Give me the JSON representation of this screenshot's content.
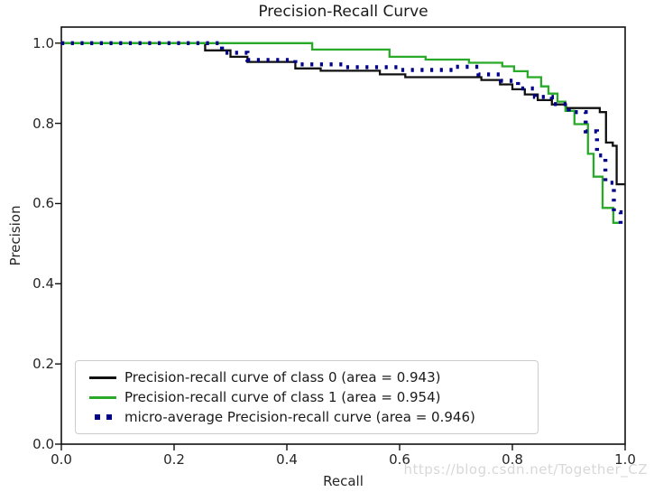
{
  "watermark": "https://blog.csdn.net/Together_CZ",
  "chart_data": {
    "type": "line",
    "title": "Precision-Recall Curve",
    "xlabel": "Recall",
    "ylabel": "Precision",
    "xlim": [
      0.0,
      1.0
    ],
    "ylim": [
      0.0,
      1.04
    ],
    "xticks": [
      0.0,
      0.2,
      0.4,
      0.6,
      0.8,
      1.0
    ],
    "yticks": [
      0.0,
      0.2,
      0.4,
      0.6,
      0.8,
      1.0
    ],
    "grid": false,
    "legend_position": "lower left",
    "axis_color": "#111111",
    "series": [
      {
        "name": "Precision-recall curve of class 0 (area = 0.943)",
        "area": 0.943,
        "color": "#111111",
        "style": "solid",
        "points": [
          [
            0.0,
            1.0
          ],
          [
            0.255,
            1.0
          ],
          [
            0.255,
            0.982
          ],
          [
            0.3,
            0.982
          ],
          [
            0.3,
            0.966
          ],
          [
            0.33,
            0.966
          ],
          [
            0.33,
            0.953
          ],
          [
            0.415,
            0.953
          ],
          [
            0.415,
            0.937
          ],
          [
            0.46,
            0.937
          ],
          [
            0.46,
            0.931
          ],
          [
            0.565,
            0.931
          ],
          [
            0.565,
            0.922
          ],
          [
            0.61,
            0.922
          ],
          [
            0.61,
            0.915
          ],
          [
            0.745,
            0.915
          ],
          [
            0.745,
            0.908
          ],
          [
            0.778,
            0.908
          ],
          [
            0.778,
            0.897
          ],
          [
            0.8,
            0.897
          ],
          [
            0.8,
            0.885
          ],
          [
            0.822,
            0.885
          ],
          [
            0.822,
            0.872
          ],
          [
            0.845,
            0.872
          ],
          [
            0.845,
            0.858
          ],
          [
            0.87,
            0.858
          ],
          [
            0.87,
            0.847
          ],
          [
            0.895,
            0.847
          ],
          [
            0.895,
            0.838
          ],
          [
            0.955,
            0.838
          ],
          [
            0.955,
            0.828
          ],
          [
            0.966,
            0.828
          ],
          [
            0.966,
            0.752
          ],
          [
            0.978,
            0.752
          ],
          [
            0.978,
            0.744
          ],
          [
            0.985,
            0.744
          ],
          [
            0.985,
            0.648
          ],
          [
            1.0,
            0.648
          ]
        ]
      },
      {
        "name": "Precision-recall curve of class 1 (area = 0.954)",
        "area": 0.954,
        "color": "#28aa28",
        "style": "solid",
        "points": [
          [
            0.0,
            1.0
          ],
          [
            0.445,
            1.0
          ],
          [
            0.445,
            0.984
          ],
          [
            0.582,
            0.984
          ],
          [
            0.582,
            0.966
          ],
          [
            0.646,
            0.966
          ],
          [
            0.646,
            0.959
          ],
          [
            0.723,
            0.959
          ],
          [
            0.723,
            0.951
          ],
          [
            0.782,
            0.951
          ],
          [
            0.782,
            0.942
          ],
          [
            0.803,
            0.942
          ],
          [
            0.803,
            0.93
          ],
          [
            0.827,
            0.93
          ],
          [
            0.827,
            0.915
          ],
          [
            0.851,
            0.915
          ],
          [
            0.851,
            0.892
          ],
          [
            0.864,
            0.892
          ],
          [
            0.864,
            0.874
          ],
          [
            0.88,
            0.874
          ],
          [
            0.88,
            0.854
          ],
          [
            0.894,
            0.854
          ],
          [
            0.894,
            0.831
          ],
          [
            0.91,
            0.831
          ],
          [
            0.91,
            0.798
          ],
          [
            0.934,
            0.798
          ],
          [
            0.934,
            0.724
          ],
          [
            0.944,
            0.724
          ],
          [
            0.944,
            0.667
          ],
          [
            0.96,
            0.667
          ],
          [
            0.96,
            0.589
          ],
          [
            0.979,
            0.589
          ],
          [
            0.979,
            0.552
          ],
          [
            0.99,
            0.552
          ]
        ]
      },
      {
        "name": "micro-average Precision-recall curve (area = 0.946)",
        "area": 0.946,
        "color": "#00008b",
        "style": "dotted",
        "points": [
          [
            0.0,
            1.0
          ],
          [
            0.285,
            1.0
          ],
          [
            0.285,
            0.976
          ],
          [
            0.33,
            0.976
          ],
          [
            0.33,
            0.958
          ],
          [
            0.415,
            0.958
          ],
          [
            0.415,
            0.947
          ],
          [
            0.5,
            0.947
          ],
          [
            0.5,
            0.94
          ],
          [
            0.6,
            0.94
          ],
          [
            0.6,
            0.933
          ],
          [
            0.7,
            0.933
          ],
          [
            0.7,
            0.941
          ],
          [
            0.74,
            0.941
          ],
          [
            0.74,
            0.922
          ],
          [
            0.78,
            0.922
          ],
          [
            0.78,
            0.906
          ],
          [
            0.81,
            0.906
          ],
          [
            0.81,
            0.887
          ],
          [
            0.84,
            0.887
          ],
          [
            0.84,
            0.866
          ],
          [
            0.87,
            0.866
          ],
          [
            0.87,
            0.848
          ],
          [
            0.9,
            0.848
          ],
          [
            0.9,
            0.828
          ],
          [
            0.93,
            0.828
          ],
          [
            0.93,
            0.78
          ],
          [
            0.95,
            0.78
          ],
          [
            0.95,
            0.72
          ],
          [
            0.965,
            0.72
          ],
          [
            0.965,
            0.652
          ],
          [
            0.98,
            0.652
          ],
          [
            0.98,
            0.578
          ],
          [
            0.992,
            0.578
          ],
          [
            0.992,
            0.548
          ],
          [
            0.998,
            0.548
          ]
        ]
      }
    ]
  }
}
